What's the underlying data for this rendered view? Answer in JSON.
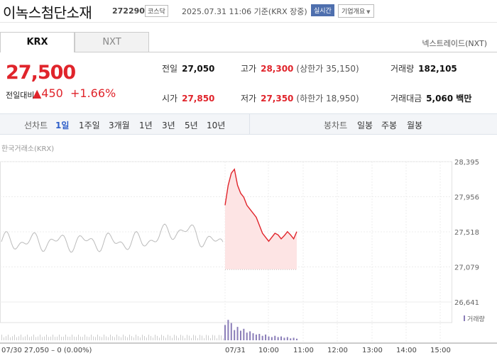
{
  "header": {
    "name": "이녹스첨단소재",
    "code": "272290",
    "market_badge": "코스닥",
    "datetime": "2025.07.31 11:06 기준(KRX 장중)",
    "realtime_badge": "실시간",
    "corp_info": "기업개요",
    "corp_caret": "▼"
  },
  "tabs": {
    "krx": "KRX",
    "nxt": "NXT",
    "nextrade_link": "넥스트레이드(NXT)"
  },
  "quote": {
    "price": "27,500",
    "change_label": "전일대비",
    "change": "▲450",
    "change_pct": "+1.66%"
  },
  "stats": {
    "prev_label": "전일",
    "prev": "27,050",
    "high_label": "고가",
    "high": "28,300",
    "upper_limit": "(상한가 35,150)",
    "volume_label": "거래량",
    "volume": "182,105",
    "open_label": "시가",
    "open": "27,850",
    "low_label": "저가",
    "low": "27,350",
    "lower_limit": "(하한가 18,950)",
    "amount_label": "거래대금",
    "amount": "5,060 백만"
  },
  "periods": {
    "line_label": "선차트",
    "items": [
      "1일",
      "1주일",
      "3개월",
      "1년",
      "3년",
      "5년",
      "10년"
    ],
    "selected": "1일",
    "candle_label": "봉차트",
    "candle_items": [
      "일봉",
      "주봉",
      "월봉"
    ]
  },
  "chart": {
    "exchange_label": "한국거래소(KRX)",
    "volume_legend": "거래량",
    "prev_day_label": "07/30 27,050 – 0 (0.00%)",
    "accent_color": "#e0242b",
    "fill_color": "#fde4e4",
    "prev_color": "#bbbbbb",
    "volume_color": "#8a7db8"
  },
  "chart_data": {
    "type": "line",
    "y_ticks": [
      "28,395",
      "27,956",
      "27,518",
      "27,079",
      "26,641"
    ],
    "y_tick_values": [
      28395,
      27956,
      27518,
      27079,
      26641
    ],
    "x_ticks": [
      "07/31",
      "10:00",
      "11:00",
      "12:00",
      "13:00",
      "14:00",
      "15:00"
    ],
    "ylim": [
      26641,
      28395
    ],
    "baseline": 27050,
    "series": [
      {
        "values": [
          27850,
          28100,
          28250,
          28300,
          28100,
          28000,
          27950,
          27850,
          27800,
          27750,
          27700,
          27600,
          27500,
          27450,
          27400,
          27450,
          27500,
          27480,
          27430,
          27470,
          27520,
          27480,
          27430,
          27520
        ]
      }
    ],
    "volume": [
      48,
      64,
      54,
      32,
      42,
      30,
      36,
      24,
      28,
      22,
      18,
      20,
      14,
      18,
      12,
      10,
      14,
      10,
      12,
      8,
      10,
      6,
      8,
      5
    ]
  }
}
